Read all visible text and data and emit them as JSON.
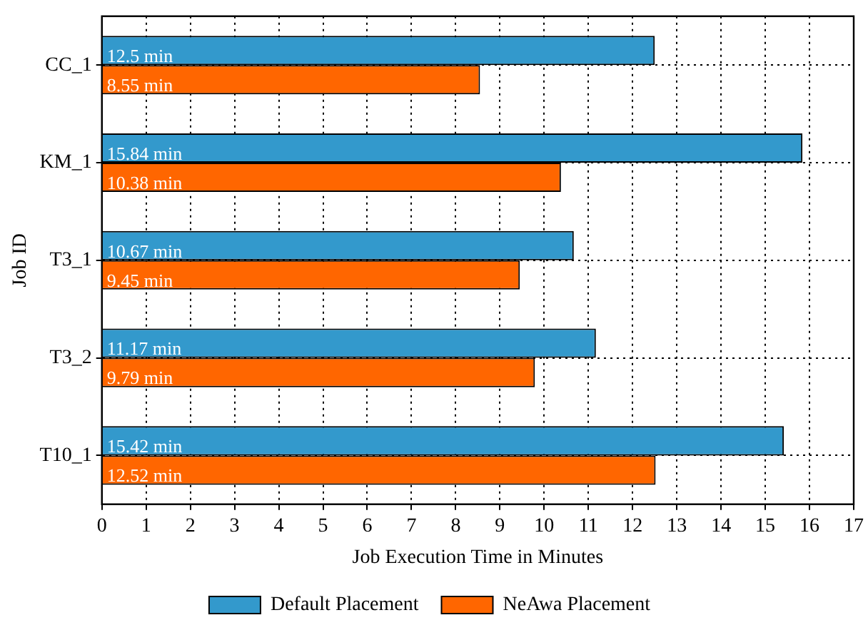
{
  "chart_data": {
    "type": "bar",
    "orientation": "horizontal",
    "xlabel": "Job Execution Time in Minutes",
    "ylabel": "Job ID",
    "categories": [
      "CC_1",
      "KM_1",
      "T3_1",
      "T3_2",
      "T10_1"
    ],
    "series": [
      {
        "name": "Default Placement",
        "color": "#3399cc",
        "values": [
          12.5,
          15.84,
          10.67,
          11.17,
          15.42
        ],
        "value_labels": [
          "12.5 min",
          "15.84 min",
          "10.67 min",
          "11.17 min",
          "15.42 min"
        ]
      },
      {
        "name": "NeAwa Placement",
        "color": "#ff6600",
        "values": [
          8.55,
          10.38,
          9.45,
          9.79,
          12.52
        ],
        "value_labels": [
          "8.55 min",
          "10.38 min",
          "9.45 min",
          "9.79 min",
          "12.52 min"
        ]
      }
    ],
    "xlim": [
      0,
      17
    ],
    "xticks": [
      0,
      1,
      2,
      3,
      4,
      5,
      6,
      7,
      8,
      9,
      10,
      11,
      12,
      13,
      14,
      15,
      16,
      17
    ],
    "grid": true,
    "legend": "bottom"
  }
}
